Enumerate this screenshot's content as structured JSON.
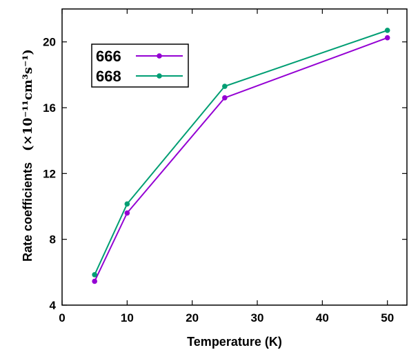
{
  "chart_data": {
    "type": "line",
    "xlabel": "Temperature (K)",
    "ylabel": "Rate coefficients",
    "ylabel_unit": "(×10⁻¹¹cm³s⁻¹)",
    "xlim": [
      0,
      53
    ],
    "ylim": [
      4,
      22
    ],
    "xticks": [
      "0",
      "10",
      "20",
      "30",
      "40",
      "50"
    ],
    "yticks": [
      "4",
      "8",
      "12",
      "16",
      "20"
    ],
    "grid": false,
    "legend_position": "top-left",
    "x": [
      5,
      10,
      25,
      50
    ],
    "series": [
      {
        "name": "666",
        "color": "#9400d3",
        "values": [
          5.45,
          9.6,
          16.6,
          20.25
        ]
      },
      {
        "name": "668",
        "color": "#009e73",
        "values": [
          5.85,
          10.15,
          17.3,
          20.7
        ]
      }
    ]
  }
}
